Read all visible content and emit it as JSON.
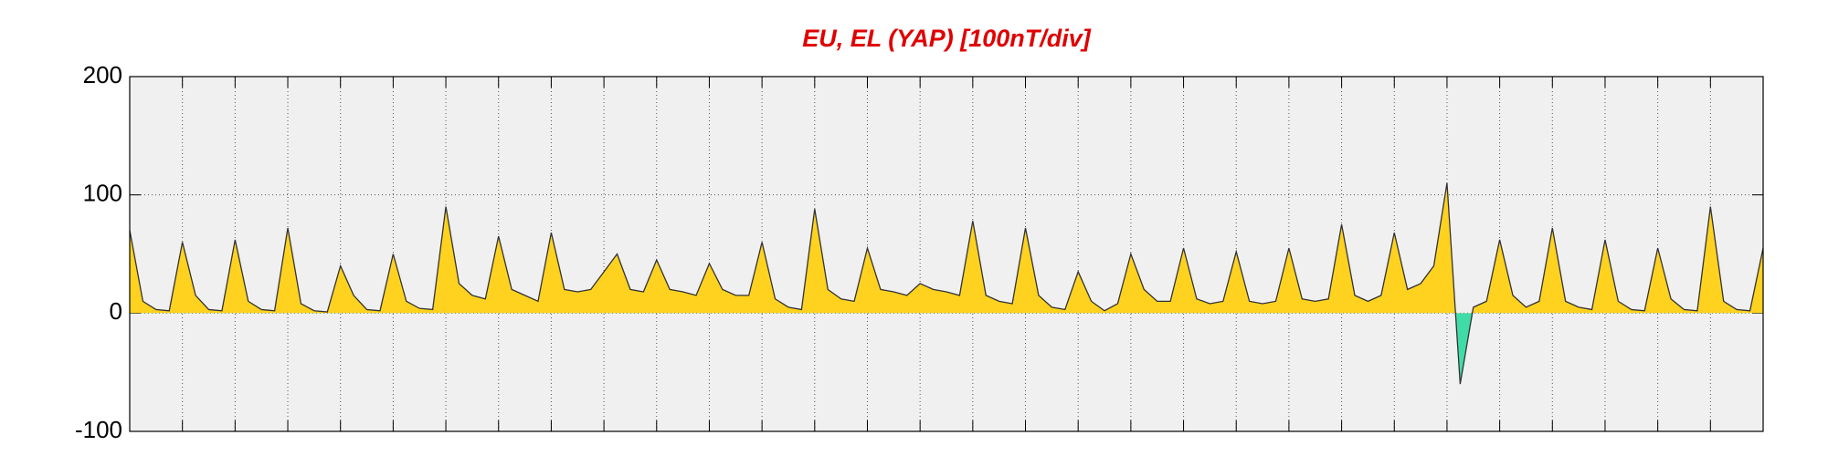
{
  "chart_data": {
    "type": "area",
    "title": "EU, EL (YAP)  [100nT/div]",
    "x": [
      0,
      0.25,
      0.5,
      0.75,
      1,
      1.25,
      1.5,
      1.75,
      2,
      2.25,
      2.5,
      2.75,
      3,
      3.25,
      3.5,
      3.75,
      4,
      4.25,
      4.5,
      4.75,
      5,
      5.25,
      5.5,
      5.75,
      6,
      6.25,
      6.5,
      6.75,
      7,
      7.25,
      7.5,
      7.75,
      8,
      8.25,
      8.5,
      8.75,
      9,
      9.25,
      9.5,
      9.75,
      10,
      10.25,
      10.5,
      10.75,
      11,
      11.25,
      11.5,
      11.75,
      12,
      12.25,
      12.5,
      12.75,
      13,
      13.25,
      13.5,
      13.75,
      14,
      14.25,
      14.5,
      14.75,
      15,
      15.25,
      15.5,
      15.75,
      16,
      16.25,
      16.5,
      16.75,
      17,
      17.25,
      17.5,
      17.75,
      18,
      18.25,
      18.5,
      18.75,
      19,
      19.25,
      19.5,
      19.75,
      20,
      20.25,
      20.5,
      20.75,
      21,
      21.25,
      21.5,
      21.75,
      22,
      22.25,
      22.5,
      22.75,
      23,
      23.25,
      23.5,
      23.75,
      24,
      24.25,
      24.5,
      24.75,
      25,
      25.25,
      25.5,
      25.75,
      26,
      26.25,
      26.5,
      26.75,
      27,
      27.25,
      27.5,
      27.75,
      28,
      28.25,
      28.5,
      28.75,
      29,
      29.25,
      29.5,
      29.75,
      30,
      30.25,
      30.5,
      30.75,
      31
    ],
    "values": [
      70,
      10,
      3,
      2,
      60,
      15,
      3,
      2,
      62,
      10,
      3,
      2,
      72,
      8,
      2,
      1,
      40,
      15,
      3,
      2,
      50,
      10,
      4,
      3,
      90,
      25,
      15,
      12,
      65,
      20,
      15,
      10,
      68,
      20,
      18,
      20,
      35,
      50,
      20,
      18,
      45,
      20,
      18,
      15,
      42,
      20,
      15,
      15,
      60,
      12,
      5,
      3,
      88,
      20,
      12,
      10,
      55,
      20,
      18,
      15,
      25,
      20,
      18,
      15,
      78,
      15,
      10,
      8,
      72,
      15,
      5,
      3,
      35,
      10,
      2,
      8,
      50,
      20,
      10,
      10,
      55,
      12,
      8,
      10,
      52,
      10,
      8,
      10,
      55,
      12,
      10,
      12,
      75,
      15,
      10,
      15,
      68,
      20,
      25,
      40,
      110,
      -60,
      5,
      10,
      62,
      15,
      5,
      10,
      72,
      10,
      5,
      3,
      62,
      10,
      3,
      2,
      55,
      12,
      3,
      2,
      90,
      10,
      3,
      2,
      55
    ],
    "positive_color": "#ffd21f",
    "negative_color": "#3fdca8",
    "line_color": "#333333",
    "xlim": [
      0,
      31
    ],
    "xticks": [
      1,
      2,
      3,
      4,
      5,
      6,
      7,
      8,
      9,
      10,
      11,
      12,
      13,
      14,
      15,
      16,
      17,
      18,
      19,
      20,
      21,
      22,
      23,
      24,
      25,
      26,
      27,
      28,
      29,
      30
    ],
    "ylim": [
      -100,
      200
    ],
    "yticks": [
      -100,
      0,
      100,
      200
    ],
    "grid": true
  }
}
